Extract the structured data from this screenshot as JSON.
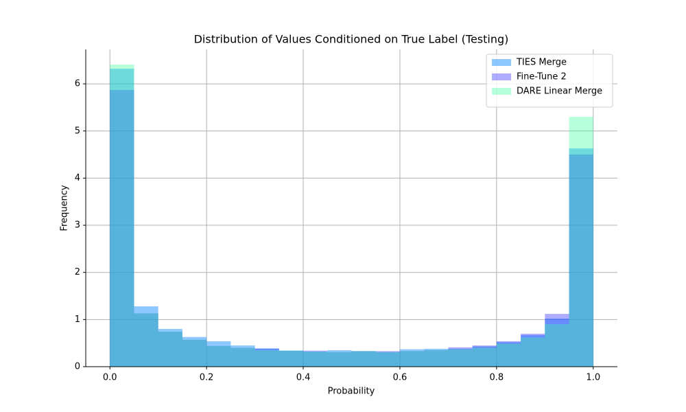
{
  "chart_data": {
    "type": "histogram",
    "title": "Distribution of Values Conditioned on True Label (Testing)",
    "xlabel": "Probability",
    "ylabel": "Frequency",
    "bins": [
      0,
      0.05,
      0.1,
      0.15,
      0.2,
      0.25,
      0.3,
      0.35,
      0.4,
      0.45,
      0.5,
      0.55,
      0.6,
      0.65,
      0.7,
      0.75,
      0.8,
      0.85,
      0.9,
      0.95,
      1.0
    ],
    "series": [
      {
        "name": "TIES Merge",
        "color": "#1f8fff",
        "alpha": 0.5,
        "values": [
          6.32,
          1.28,
          0.8,
          0.63,
          0.54,
          0.45,
          0.39,
          0.34,
          0.32,
          0.35,
          0.33,
          0.31,
          0.37,
          0.38,
          0.38,
          0.43,
          0.52,
          0.67,
          1.02,
          4.63
        ]
      },
      {
        "name": "Fine-Tune 2",
        "color": "#3333ff",
        "alpha": 0.4,
        "values": [
          5.87,
          1.13,
          0.74,
          0.57,
          0.44,
          0.4,
          0.38,
          0.34,
          0.34,
          0.31,
          0.33,
          0.33,
          0.33,
          0.35,
          0.41,
          0.45,
          0.54,
          0.7,
          1.12,
          4.5
        ]
      },
      {
        "name": "DARE Linear Merge",
        "color": "#33ff99",
        "alpha": 0.35,
        "values": [
          6.41,
          1.13,
          0.74,
          0.57,
          0.44,
          0.4,
          0.35,
          0.34,
          0.32,
          0.31,
          0.33,
          0.31,
          0.33,
          0.35,
          0.37,
          0.4,
          0.49,
          0.62,
          0.9,
          5.3
        ]
      }
    ],
    "xlim": [
      -0.05,
      1.05
    ],
    "ylim": [
      0,
      6.73
    ],
    "xticks": [
      {
        "value": 0,
        "label": "0.0"
      },
      {
        "value": 0.2,
        "label": "0.2"
      },
      {
        "value": 0.4,
        "label": "0.4"
      },
      {
        "value": 0.6,
        "label": "0.6"
      },
      {
        "value": 0.8,
        "label": "0.8"
      },
      {
        "value": 1.0,
        "label": "1.0"
      }
    ],
    "yticks": [
      0,
      1,
      2,
      3,
      4,
      5,
      6
    ],
    "grid": true,
    "legend": "upper right"
  }
}
